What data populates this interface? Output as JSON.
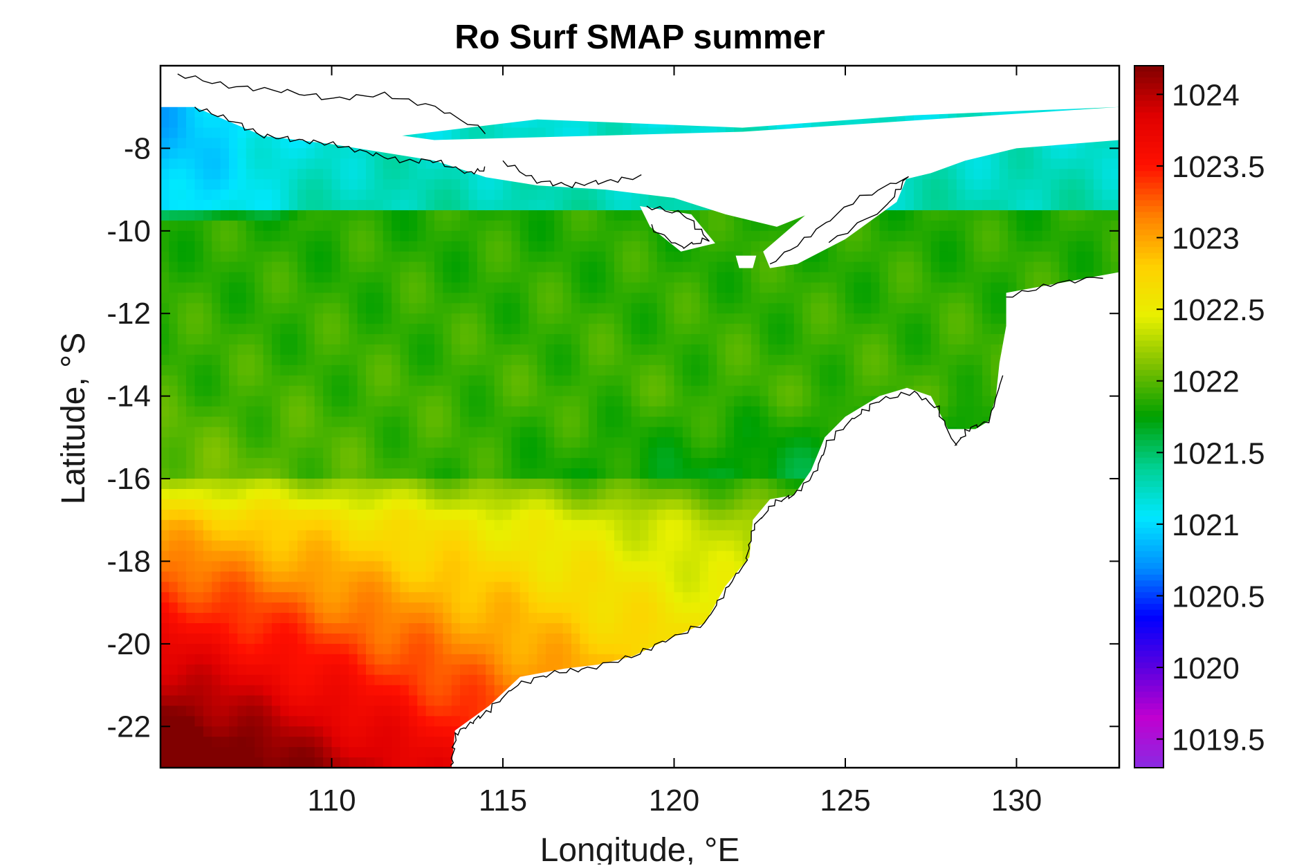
{
  "chart_data": {
    "type": "heatmap",
    "title": "Ro Surf SMAP summer",
    "xlabel": "Longitude, °E",
    "ylabel": "Latitude, °S",
    "xlim": [
      105,
      133
    ],
    "ylim": [
      -23,
      -6
    ],
    "x_ticks": [
      110,
      115,
      120,
      125,
      130
    ],
    "y_ticks": [
      -8,
      -10,
      -12,
      -14,
      -16,
      -18,
      -20,
      -22
    ],
    "colorbar": {
      "range": [
        1019.3,
        1024.2
      ],
      "ticks": [
        1024,
        1023.5,
        1023,
        1022.5,
        1022,
        1021.5,
        1021,
        1020.5,
        1020,
        1019.5
      ],
      "colormap": [
        "#8a2be2",
        "#c000d0",
        "#5a00e0",
        "#0000ff",
        "#0090ff",
        "#00e8ff",
        "#00d090",
        "#00a000",
        "#7cc000",
        "#e8f000",
        "#ffd000",
        "#ff8000",
        "#ff1000",
        "#e00000",
        "#800000"
      ]
    },
    "land_color": "#ffffff",
    "coastline_color": "#000000",
    "value_field_description": "density gradient: north ~1021-1022, central ~1022, south-west ~1024",
    "grid": false
  }
}
